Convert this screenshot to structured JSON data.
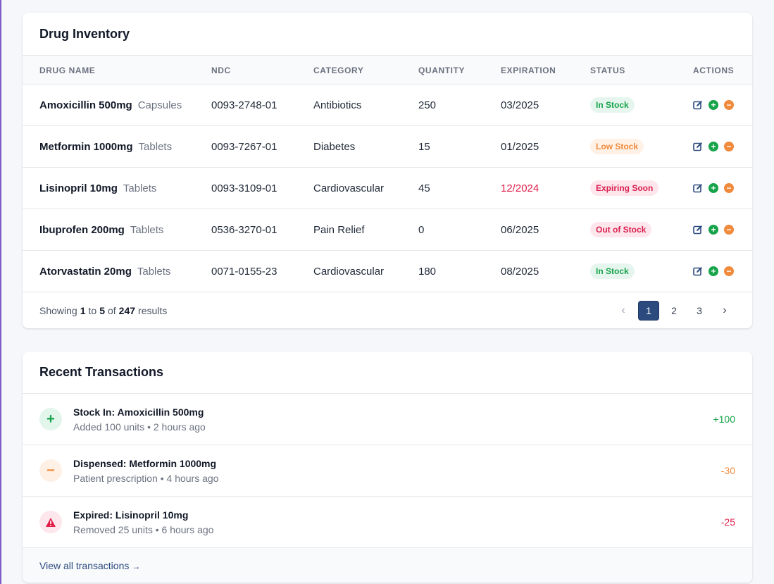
{
  "inventory": {
    "title": "Drug Inventory",
    "columns": {
      "name": "Drug Name",
      "ndc": "NDC",
      "category": "Category",
      "quantity": "Quantity",
      "expiration": "Expiration",
      "status": "Status",
      "actions": "Actions"
    },
    "rows": [
      {
        "name": "Amoxicillin 500mg",
        "form": "Capsules",
        "ndc": "0093-2748-01",
        "category": "Antibiotics",
        "quantity": "250",
        "expiration": "03/2025",
        "status": "In Stock"
      },
      {
        "name": "Metformin 1000mg",
        "form": "Tablets",
        "ndc": "0093-7267-01",
        "category": "Diabetes",
        "quantity": "15",
        "expiration": "01/2025",
        "status": "Low Stock"
      },
      {
        "name": "Lisinopril 10mg",
        "form": "Tablets",
        "ndc": "0093-3109-01",
        "category": "Cardiovascular",
        "quantity": "45",
        "expiration": "12/2024",
        "status": "Expiring Soon"
      },
      {
        "name": "Ibuprofen 200mg",
        "form": "Tablets",
        "ndc": "0536-3270-01",
        "category": "Pain Relief",
        "quantity": "0",
        "expiration": "06/2025",
        "status": "Out of Stock"
      },
      {
        "name": "Atorvastatin 20mg",
        "form": "Tablets",
        "ndc": "0071-0155-23",
        "category": "Cardiovascular",
        "quantity": "180",
        "expiration": "08/2025",
        "status": "In Stock"
      }
    ],
    "pagination": {
      "showing_prefix": "Showing",
      "from": "1",
      "to_word": "to",
      "to": "5",
      "of_word": "of",
      "total": "247",
      "results_word": "results",
      "pages": [
        "1",
        "2",
        "3"
      ],
      "prev": "‹",
      "next": "›"
    }
  },
  "transactions": {
    "title": "Recent Transactions",
    "items": [
      {
        "title": "Stock In: Amoxicillin 500mg",
        "detail": "Added 100 units • 2 hours ago",
        "amount": "+100",
        "icon": "+"
      },
      {
        "title": "Dispensed: Metformin 1000mg",
        "detail": "Patient prescription • 4 hours ago",
        "amount": "-30",
        "icon": "−"
      },
      {
        "title": "Expired: Lisinopril 10mg",
        "detail": "Removed 25 units • 6 hours ago",
        "amount": "-25",
        "icon": "!"
      }
    ],
    "view_all": "View all transactions",
    "view_all_arrow": "→"
  },
  "colors": {
    "accent": "#2b4a7e",
    "success": "#16a34a",
    "warning": "#f08a3c",
    "danger": "#e11d48"
  }
}
